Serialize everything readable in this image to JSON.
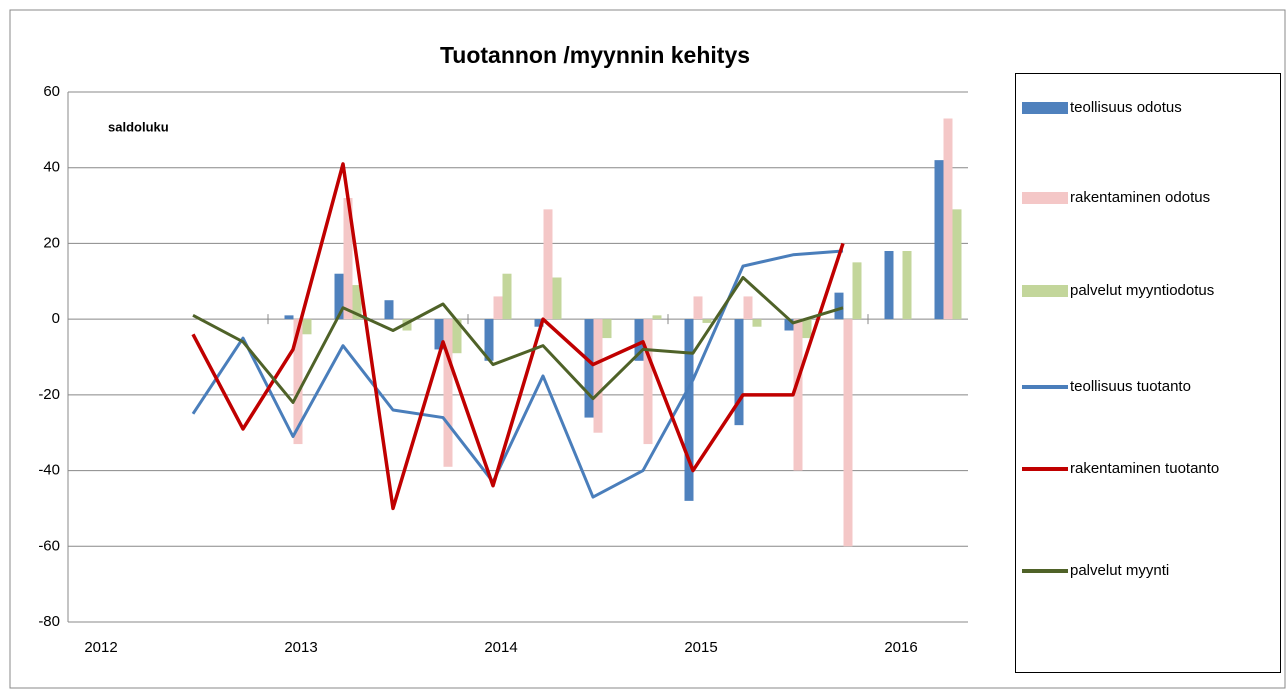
{
  "chart_data": {
    "type": "bar-line",
    "title": "Tuotannon /myynnin kehitys",
    "annotation": "saldoluku",
    "categories": [
      "2012",
      null,
      null,
      null,
      "2013",
      null,
      null,
      null,
      "2014",
      null,
      null,
      null,
      "2015",
      null,
      null,
      null,
      "2016",
      null
    ],
    "ylim": [
      -80,
      60
    ],
    "yticks": [
      -80,
      -60,
      -40,
      -20,
      0,
      20,
      40,
      60
    ],
    "grid": true,
    "legend": "right",
    "series": [
      {
        "name": "teollisuus odotus",
        "type": "bar",
        "color": "#4f81bd",
        "values": [
          null,
          null,
          null,
          null,
          1,
          12,
          5,
          -8,
          -11,
          -2,
          -26,
          -11,
          -48,
          -28,
          -3,
          7,
          18,
          42
        ]
      },
      {
        "name": "rakentaminen odotus",
        "type": "bar",
        "color": "#f4c7c7",
        "values": [
          null,
          null,
          null,
          null,
          -33,
          32,
          0,
          -39,
          6,
          29,
          -30,
          -33,
          6,
          6,
          -40,
          -60,
          null,
          53
        ]
      },
      {
        "name": "palvelut myyntiodotus",
        "type": "bar",
        "color": "#c3d69b",
        "values": [
          null,
          null,
          null,
          null,
          -4,
          9,
          -3,
          -9,
          12,
          11,
          -5,
          1,
          -1,
          -2,
          -5,
          15,
          18,
          29
        ]
      },
      {
        "name": "teollisuus tuotanto",
        "type": "line",
        "color": "#4a7ebb",
        "values": [
          null,
          null,
          -25,
          -5,
          -31,
          -7,
          -24,
          -26,
          -43,
          -15,
          -47,
          -40,
          -16,
          14,
          17,
          18,
          null,
          null
        ]
      },
      {
        "name": "rakentaminen tuotanto",
        "type": "line",
        "color": "#c00000",
        "values": [
          null,
          null,
          -4,
          -29,
          -8,
          41,
          -50,
          -6,
          -44,
          0,
          -12,
          -6,
          -40,
          -20,
          -20,
          20,
          null,
          null
        ]
      },
      {
        "name": "palvelut myynti",
        "type": "line",
        "color": "#4f6228",
        "values": [
          null,
          null,
          1,
          -6,
          -22,
          3,
          -3,
          4,
          -12,
          -7,
          -21,
          -8,
          -9,
          11,
          -1,
          3,
          null,
          null
        ]
      }
    ]
  }
}
